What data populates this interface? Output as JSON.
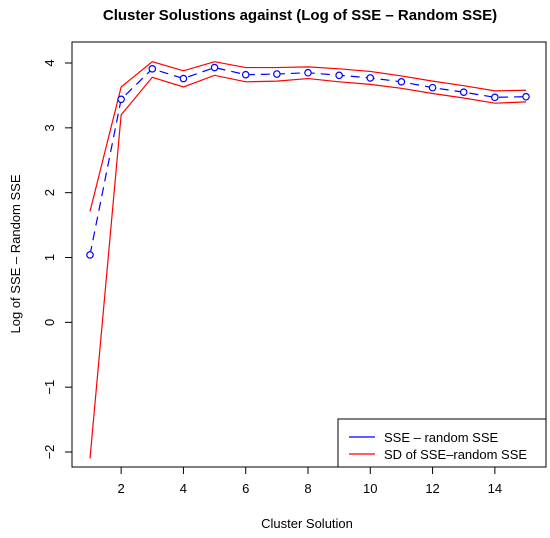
{
  "chart_data": {
    "type": "line",
    "title": "Cluster Solustions against (Log of SSE – Random SSE)",
    "xlabel": "Cluster Solution",
    "ylabel": "Log of SSE – Random SSE",
    "xlim": [
      1,
      15
    ],
    "ylim": [
      -2,
      4
    ],
    "xticks": [
      2,
      4,
      6,
      8,
      10,
      12,
      14
    ],
    "yticks": [
      -2,
      -1,
      0,
      1,
      2,
      3,
      4
    ],
    "x": [
      1,
      2,
      3,
      4,
      5,
      6,
      7,
      8,
      9,
      10,
      11,
      12,
      13,
      14,
      15
    ],
    "series": [
      {
        "name": "SSE – random SSE",
        "color": "#0000ff",
        "marker": "circle",
        "linestyle": "dashed",
        "values": [
          1.04,
          3.44,
          3.91,
          3.76,
          3.93,
          3.82,
          3.83,
          3.85,
          3.81,
          3.77,
          3.71,
          3.62,
          3.55,
          3.47,
          3.48
        ]
      },
      {
        "name": "SD of SSE–random SSE",
        "color": "#ff0000",
        "values": [
          1.71,
          3.63,
          4.02,
          3.88,
          4.02,
          3.93,
          3.93,
          3.94,
          3.91,
          3.87,
          3.8,
          3.72,
          3.65,
          3.57,
          3.58
        ]
      },
      {
        "color": "#ff0000",
        "values": [
          -2.1,
          3.2,
          3.78,
          3.63,
          3.81,
          3.71,
          3.72,
          3.76,
          3.71,
          3.67,
          3.61,
          3.53,
          3.46,
          3.38,
          3.4
        ]
      }
    ],
    "legend": {
      "placement": "bottom-right",
      "entries": [
        {
          "label": "SSE – random SSE",
          "color": "#0000ff"
        },
        {
          "label": "SD of SSE–random SSE",
          "color": "#ff0000"
        }
      ]
    }
  }
}
